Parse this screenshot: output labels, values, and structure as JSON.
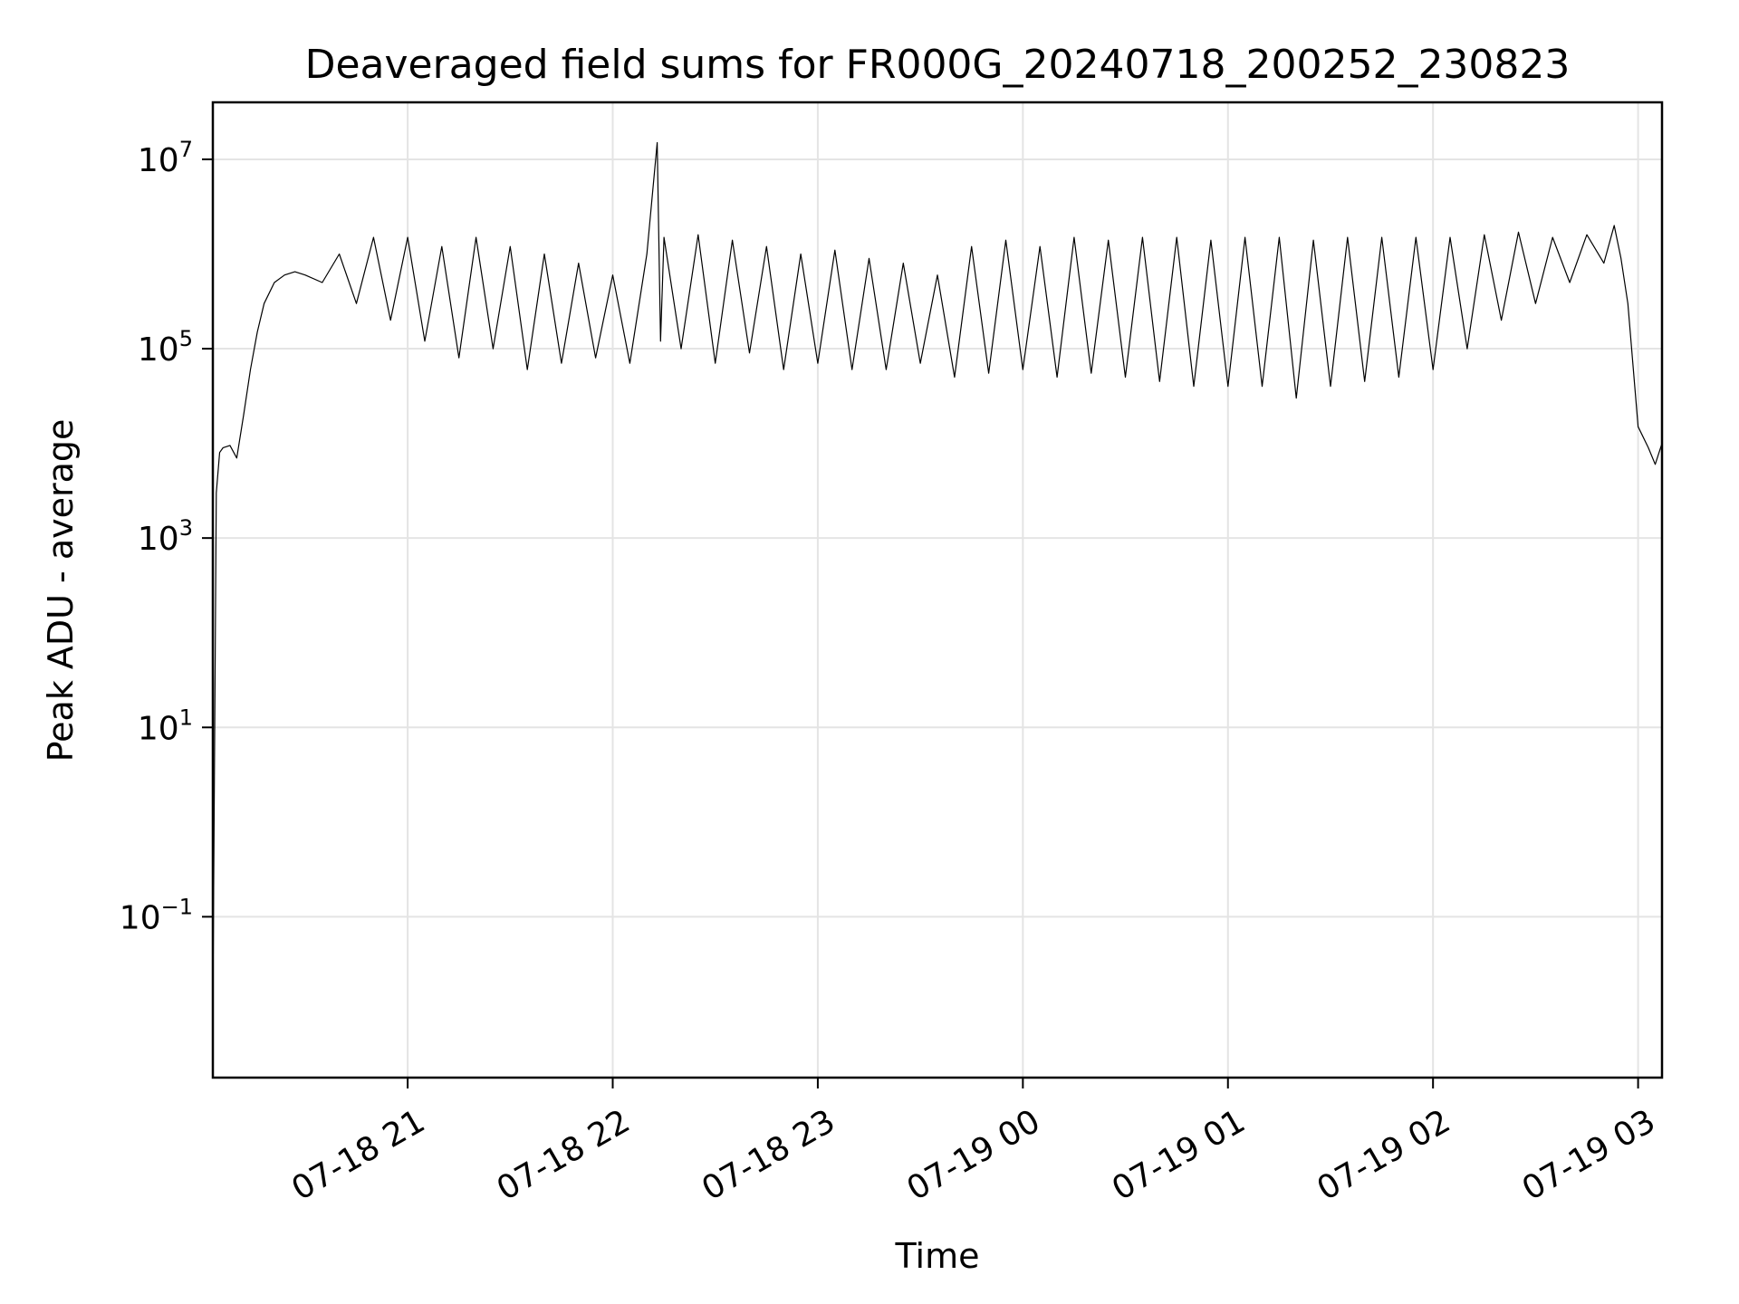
{
  "chart_data": {
    "type": "line",
    "title": "Deaveraged field sums for FR000G_20240718_200252_230823",
    "xlabel": "Time",
    "ylabel": "Peak ADU - average",
    "yscale": "log",
    "ylim": [
      0.002,
      40000000
    ],
    "xlim": [
      "2024-07-18 20:03",
      "2024-07-19 03:07"
    ],
    "grid": true,
    "x_ticks": [
      {
        "value": "2024-07-18 21:00",
        "label": "07-18 21"
      },
      {
        "value": "2024-07-18 22:00",
        "label": "07-18 22"
      },
      {
        "value": "2024-07-18 23:00",
        "label": "07-18 23"
      },
      {
        "value": "2024-07-19 00:00",
        "label": "07-19 00"
      },
      {
        "value": "2024-07-19 01:00",
        "label": "07-19 01"
      },
      {
        "value": "2024-07-19 02:00",
        "label": "07-19 02"
      },
      {
        "value": "2024-07-19 03:00",
        "label": "07-19 03"
      }
    ],
    "y_ticks": [
      {
        "value": 0.1,
        "base": "10",
        "exp": "−1"
      },
      {
        "value": 10,
        "base": "10",
        "exp": "1"
      },
      {
        "value": 1000,
        "base": "10",
        "exp": "3"
      },
      {
        "value": 100000,
        "base": "10",
        "exp": "5"
      },
      {
        "value": 10000000,
        "base": "10",
        "exp": "7"
      }
    ],
    "series": [
      {
        "color": "#000000",
        "x": [
          "2024-07-18 20:03",
          "2024-07-18 20:04",
          "2024-07-18 20:05",
          "2024-07-18 20:06",
          "2024-07-18 20:08",
          "2024-07-18 20:10",
          "2024-07-18 20:12",
          "2024-07-18 20:14",
          "2024-07-18 20:16",
          "2024-07-18 20:18",
          "2024-07-18 20:21",
          "2024-07-18 20:24",
          "2024-07-18 20:27",
          "2024-07-18 20:30",
          "2024-07-18 20:35",
          "2024-07-18 20:40",
          "2024-07-18 20:45",
          "2024-07-18 20:50",
          "2024-07-18 20:55",
          "2024-07-18 21:00",
          "2024-07-18 21:05",
          "2024-07-18 21:10",
          "2024-07-18 21:15",
          "2024-07-18 21:20",
          "2024-07-18 21:25",
          "2024-07-18 21:30",
          "2024-07-18 21:35",
          "2024-07-18 21:40",
          "2024-07-18 21:45",
          "2024-07-18 21:50",
          "2024-07-18 21:55",
          "2024-07-18 22:00",
          "2024-07-18 22:05",
          "2024-07-18 22:10",
          "2024-07-18 22:13",
          "2024-07-18 22:14",
          "2024-07-18 22:15",
          "2024-07-18 22:20",
          "2024-07-18 22:25",
          "2024-07-18 22:30",
          "2024-07-18 22:35",
          "2024-07-18 22:40",
          "2024-07-18 22:45",
          "2024-07-18 22:50",
          "2024-07-18 22:55",
          "2024-07-18 23:00",
          "2024-07-18 23:05",
          "2024-07-18 23:10",
          "2024-07-18 23:15",
          "2024-07-18 23:20",
          "2024-07-18 23:25",
          "2024-07-18 23:30",
          "2024-07-18 23:35",
          "2024-07-18 23:40",
          "2024-07-18 23:45",
          "2024-07-18 23:50",
          "2024-07-18 23:55",
          "2024-07-19 00:00",
          "2024-07-19 00:05",
          "2024-07-19 00:10",
          "2024-07-19 00:15",
          "2024-07-19 00:20",
          "2024-07-19 00:25",
          "2024-07-19 00:30",
          "2024-07-19 00:35",
          "2024-07-19 00:40",
          "2024-07-19 00:45",
          "2024-07-19 00:50",
          "2024-07-19 00:55",
          "2024-07-19 01:00",
          "2024-07-19 01:05",
          "2024-07-19 01:10",
          "2024-07-19 01:15",
          "2024-07-19 01:20",
          "2024-07-19 01:25",
          "2024-07-19 01:30",
          "2024-07-19 01:35",
          "2024-07-19 01:40",
          "2024-07-19 01:45",
          "2024-07-19 01:50",
          "2024-07-19 01:55",
          "2024-07-19 02:00",
          "2024-07-19 02:05",
          "2024-07-19 02:10",
          "2024-07-19 02:15",
          "2024-07-19 02:20",
          "2024-07-19 02:25",
          "2024-07-19 02:30",
          "2024-07-19 02:35",
          "2024-07-19 02:40",
          "2024-07-19 02:45",
          "2024-07-19 02:50",
          "2024-07-19 02:53",
          "2024-07-19 02:55",
          "2024-07-19 02:57",
          "2024-07-19 03:00",
          "2024-07-19 03:03",
          "2024-07-19 03:05",
          "2024-07-19 03:07"
        ],
        "y": [
          0.01,
          3000,
          8000,
          9000,
          9500,
          7000,
          20000,
          60000,
          150000,
          300000,
          500000,
          600000,
          650000,
          600000,
          500000,
          1000000,
          300000,
          1500000,
          200000,
          1500000,
          120000,
          1200000,
          80000,
          1500000,
          100000,
          1200000,
          60000,
          1000000,
          70000,
          800000,
          80000,
          600000,
          70000,
          1000000,
          15000000,
          120000,
          1500000,
          100000,
          1600000,
          70000,
          1400000,
          90000,
          1200000,
          60000,
          1000000,
          70000,
          1100000,
          60000,
          900000,
          60000,
          800000,
          70000,
          600000,
          50000,
          1200000,
          55000,
          1400000,
          60000,
          1200000,
          50000,
          1500000,
          55000,
          1400000,
          50000,
          1500000,
          45000,
          1500000,
          40000,
          1400000,
          40000,
          1500000,
          40000,
          1500000,
          30000,
          1400000,
          40000,
          1500000,
          45000,
          1500000,
          50000,
          1500000,
          60000,
          1500000,
          100000,
          1600000,
          200000,
          1700000,
          300000,
          1500000,
          500000,
          1600000,
          800000,
          2000000,
          900000,
          300000,
          15000,
          9000,
          6000,
          10000
        ]
      }
    ]
  }
}
